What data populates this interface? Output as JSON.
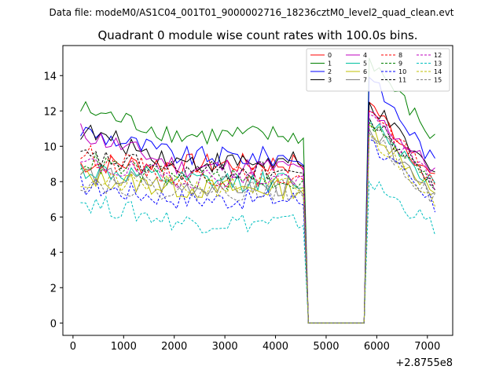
{
  "chart_data": {
    "type": "line",
    "suptitle": "Data file: modeM0/AS1C04_001T01_9000002716_18236cztM0_level2_quad_clean.evt",
    "title": "Quadrant 0 module wise count rates with 100.0s bins.",
    "xlabel": "",
    "ylabel": "",
    "x_offset_label": "+2.8755e8",
    "xlim": [
      -200,
      7500
    ],
    "ylim": [
      -0.7,
      15.7
    ],
    "x_ticks": [
      0,
      1000,
      2000,
      3000,
      4000,
      5000,
      6000,
      7000
    ],
    "x_tick_labels": [
      "0",
      "1000",
      "2000",
      "3000",
      "4000",
      "5000",
      "6000",
      "7000"
    ],
    "y_ticks": [
      0,
      2,
      4,
      6,
      8,
      10,
      12,
      14
    ],
    "y_tick_labels": [
      "0",
      "2",
      "4",
      "6",
      "8",
      "10",
      "12",
      "14"
    ],
    "legend_position": "top-right",
    "legend_columns": 4,
    "series": [
      {
        "name": "0",
        "color": "#ff0000",
        "dashed": false,
        "levels": [
          9.0,
          9.0,
          12.5,
          8.0
        ]
      },
      {
        "name": "1",
        "color": "#008000",
        "dashed": false,
        "levels": [
          12.1,
          10.6,
          15.0,
          10.3
        ]
      },
      {
        "name": "2",
        "color": "#0000ff",
        "dashed": false,
        "levels": [
          10.9,
          9.4,
          13.9,
          9.0
        ]
      },
      {
        "name": "3",
        "color": "#000000",
        "dashed": false,
        "levels": [
          10.9,
          9.1,
          12.5,
          8.3
        ]
      },
      {
        "name": "4",
        "color": "#bf00bf",
        "dashed": false,
        "levels": [
          10.8,
          8.8,
          12.0,
          8.6
        ]
      },
      {
        "name": "5",
        "color": "#00c0a0",
        "dashed": false,
        "levels": [
          8.7,
          8.0,
          11.6,
          7.8
        ]
      },
      {
        "name": "6",
        "color": "#bfbf00",
        "dashed": false,
        "levels": [
          8.3,
          7.6,
          11.2,
          7.3
        ]
      },
      {
        "name": "7",
        "color": "#808080",
        "dashed": false,
        "levels": [
          8.5,
          7.7,
          11.0,
          7.4
        ]
      },
      {
        "name": "8",
        "color": "#ff0000",
        "dashed": true,
        "levels": [
          9.6,
          8.3,
          12.0,
          7.9
        ]
      },
      {
        "name": "9",
        "color": "#008000",
        "dashed": true,
        "levels": [
          9.2,
          8.1,
          11.4,
          7.7
        ]
      },
      {
        "name": "10",
        "color": "#0000ff",
        "dashed": true,
        "levels": [
          7.8,
          7.0,
          10.4,
          6.5
        ]
      },
      {
        "name": "11",
        "color": "#000000",
        "dashed": true,
        "levels": [
          9.4,
          8.6,
          11.6,
          7.8
        ]
      },
      {
        "name": "12",
        "color": "#bf00bf",
        "dashed": true,
        "levels": [
          9.0,
          8.2,
          11.8,
          7.9
        ]
      },
      {
        "name": "13",
        "color": "#00bfbf",
        "dashed": true,
        "levels": [
          6.9,
          5.7,
          8.0,
          5.4
        ]
      },
      {
        "name": "14",
        "color": "#bfbf00",
        "dashed": true,
        "levels": [
          8.0,
          7.7,
          10.6,
          7.1
        ]
      },
      {
        "name": "15",
        "color": "#808080",
        "dashed": true,
        "levels": [
          8.0,
          7.5,
          10.8,
          6.9
        ]
      }
    ],
    "segments": {
      "bin_size": 100,
      "active1": [
        150,
        4550
      ],
      "gap": [
        4650,
        5750
      ],
      "active2": [
        5850,
        7150
      ]
    }
  }
}
